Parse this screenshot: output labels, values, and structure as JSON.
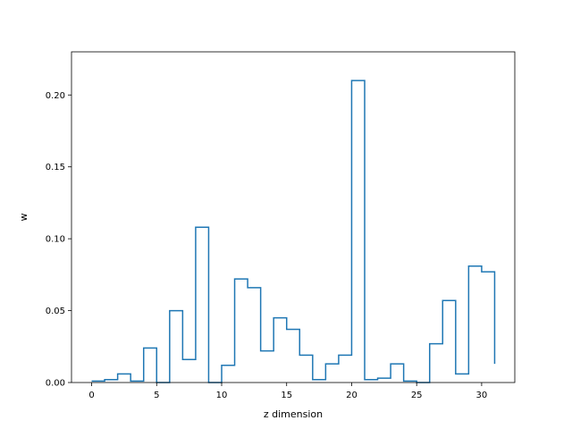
{
  "chart_data": {
    "type": "line",
    "step": "post",
    "xlabel": "z dimension",
    "ylabel": "w",
    "xlim": [
      -1.55,
      32.55
    ],
    "ylim": [
      0,
      0.23
    ],
    "xticks": [
      0,
      5,
      10,
      15,
      20,
      25,
      30
    ],
    "yticks": [
      0.0,
      0.05,
      0.1,
      0.15,
      0.2
    ],
    "xtick_labels": [
      "0",
      "5",
      "10",
      "15",
      "20",
      "25",
      "30"
    ],
    "ytick_labels": [
      "0.00",
      "0.05",
      "0.10",
      "0.15",
      "0.20"
    ],
    "grid": false,
    "line_color": "#1f77b4",
    "x": [
      0,
      1,
      2,
      3,
      4,
      5,
      6,
      7,
      8,
      9,
      10,
      11,
      12,
      13,
      14,
      15,
      16,
      17,
      18,
      19,
      20,
      21,
      22,
      23,
      24,
      25,
      26,
      27,
      28,
      29,
      30,
      31
    ],
    "values": [
      0.001,
      0.002,
      0.006,
      0.001,
      0.024,
      0.0,
      0.05,
      0.016,
      0.108,
      0.0,
      0.012,
      0.072,
      0.066,
      0.022,
      0.045,
      0.037,
      0.019,
      0.002,
      0.013,
      0.019,
      0.21,
      0.002,
      0.003,
      0.013,
      0.001,
      0.0,
      0.027,
      0.057,
      0.006,
      0.081,
      0.077,
      0.013
    ]
  }
}
